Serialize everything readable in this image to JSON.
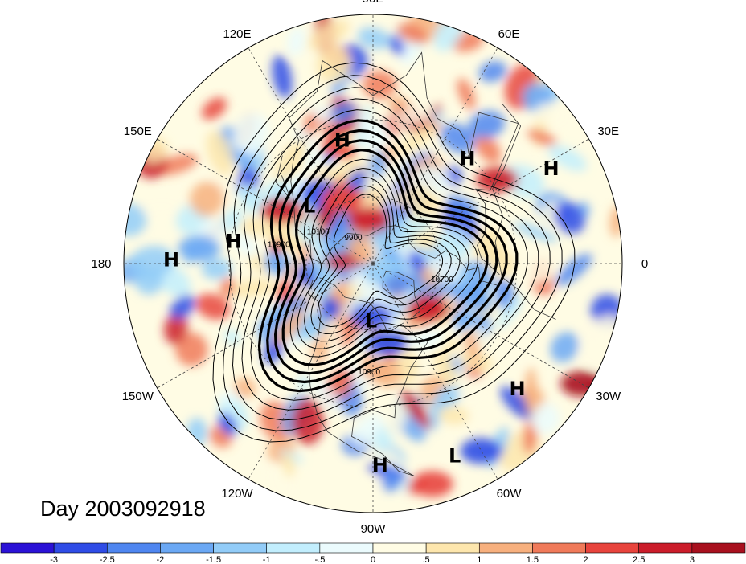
{
  "map": {
    "projection": "north-polar-stereographic",
    "longitude_labels": [
      {
        "text": "90E",
        "lon": 90
      },
      {
        "text": "60E",
        "lon": 60
      },
      {
        "text": "30E",
        "lon": 30
      },
      {
        "text": "0",
        "lon": 0
      },
      {
        "text": "30W",
        "lon": -30
      },
      {
        "text": "60W",
        "lon": -60
      },
      {
        "text": "90W",
        "lon": -90
      },
      {
        "text": "120W",
        "lon": -120
      },
      {
        "text": "150W",
        "lon": -150
      },
      {
        "text": "180",
        "lon": 180
      },
      {
        "text": "150E",
        "lon": 150
      },
      {
        "text": "120E",
        "lon": 120
      }
    ],
    "pressure_centers": [
      {
        "type": "H",
        "lon": 104,
        "lat": 36
      },
      {
        "type": "H",
        "lon": 48,
        "lat": 31
      },
      {
        "type": "H",
        "lon": 28,
        "lat": 12
      },
      {
        "type": "L",
        "lon": 138,
        "lat": 52
      },
      {
        "type": "H",
        "lon": 171,
        "lat": 31
      },
      {
        "type": "H",
        "lon": 179,
        "lat": 12
      },
      {
        "type": "L",
        "lon": -92,
        "lat": 64
      },
      {
        "type": "H",
        "lon": -41,
        "lat": 15
      },
      {
        "type": "L",
        "lon": -67,
        "lat": 10
      },
      {
        "type": "H",
        "lon": -88,
        "lat": 12
      }
    ],
    "contour_labels": [
      {
        "text": "10100",
        "lon": 152,
        "lat": 62
      },
      {
        "text": "9900",
        "lon": 130,
        "lat": 76
      },
      {
        "text": "10700",
        "lon": -15,
        "lat": 58
      },
      {
        "text": "10900",
        "lon": -92,
        "lat": 42
      },
      {
        "text": "10900",
        "lon": 170,
        "lat": 48
      }
    ]
  },
  "date_label": "Day 2003092918",
  "colorbar": {
    "colors": [
      "#2b12d6",
      "#2f4ce6",
      "#4f86f0",
      "#6ba8f4",
      "#92ccf8",
      "#c2eefd",
      "#ebfbfd",
      "#fffce4",
      "#fde6ad",
      "#f7b07e",
      "#f07a5a",
      "#e8443d",
      "#cb1c2a",
      "#a8101e"
    ],
    "ticks": [
      "-3",
      "-2.5",
      "-2",
      "-1.5",
      "-1",
      "-.5",
      "0",
      ".5",
      "1",
      "1.5",
      "2",
      "2.5",
      "3"
    ]
  }
}
